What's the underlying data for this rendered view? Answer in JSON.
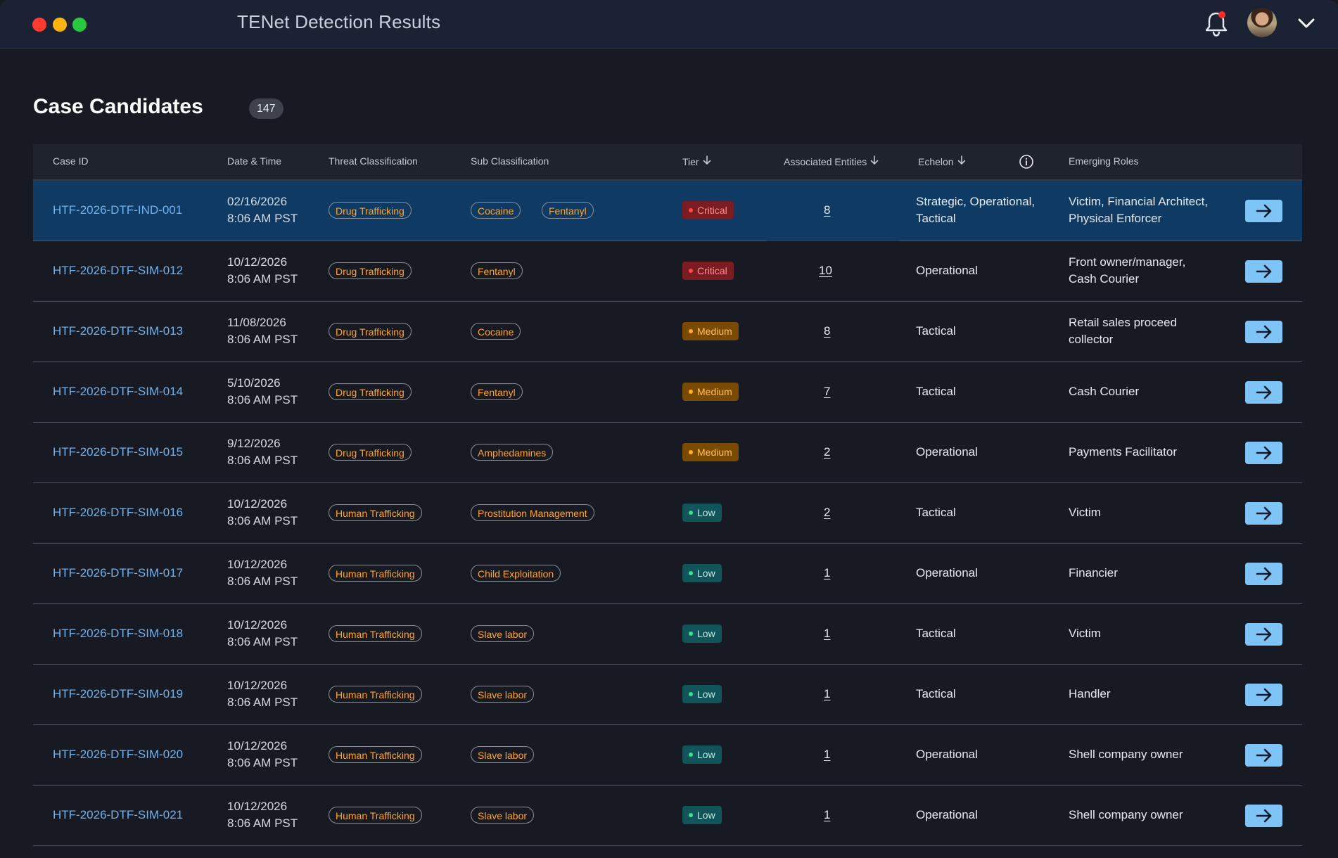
{
  "window": {
    "title": "TENet Detection Results"
  },
  "page": {
    "title": "Case Candidates",
    "count": "147"
  },
  "table": {
    "headers": {
      "case_id": "Case ID",
      "date_time": "Date & Time",
      "threat": "Threat Classification",
      "sub": "Sub Classification",
      "tier": "Tier",
      "entities": "Associated Entities",
      "echelon": "Echelon",
      "roles": "Emerging Roles"
    },
    "rows": [
      {
        "case_id": "HTF-2026-DTF-IND-001",
        "date": "02/16/2026",
        "time": "8:06 AM PST",
        "threat": "Drug Trafficking",
        "subs": [
          "Cocaine",
          "Fentanyl"
        ],
        "tier": "Critical",
        "tier_level": "critical",
        "entities": "8",
        "echelon": [
          "Strategic, Operational,",
          "Tactical"
        ],
        "roles": [
          "Victim, Financial Architect,",
          "Physical Enforcer"
        ],
        "selected": true
      },
      {
        "case_id": "HTF-2026-DTF-SIM-012",
        "date": "10/12/2026",
        "time": "8:06 AM PST",
        "threat": "Drug Trafficking",
        "subs": [
          "Fentanyl"
        ],
        "tier": "Critical",
        "tier_level": "critical",
        "entities": "10",
        "echelon": [
          "Operational"
        ],
        "roles": [
          "Front owner/manager,",
          "Cash Courier"
        ]
      },
      {
        "case_id": "HTF-2026-DTF-SIM-013",
        "date": "11/08/2026",
        "time": "8:06 AM PST",
        "threat": "Drug Trafficking",
        "subs": [
          "Cocaine"
        ],
        "tier": "Medium",
        "tier_level": "medium",
        "entities": "8",
        "echelon": [
          "Tactical"
        ],
        "roles": [
          "Retail sales proceed",
          "collector"
        ]
      },
      {
        "case_id": "HTF-2026-DTF-SIM-014",
        "date": "5/10/2026",
        "time": "8:06 AM PST",
        "threat": "Drug Trafficking",
        "subs": [
          "Fentanyl"
        ],
        "tier": "Medium",
        "tier_level": "medium",
        "entities": "7",
        "echelon": [
          "Tactical"
        ],
        "roles": [
          "Cash Courier"
        ]
      },
      {
        "case_id": "HTF-2026-DTF-SIM-015",
        "date": "9/12/2026",
        "time": "8:06 AM PST",
        "threat": "Drug Trafficking",
        "subs": [
          "Amphedamines"
        ],
        "tier": "Medium",
        "tier_level": "medium",
        "entities": "2",
        "echelon": [
          "Operational"
        ],
        "roles": [
          "Payments Facilitator"
        ]
      },
      {
        "case_id": "HTF-2026-DTF-SIM-016",
        "date": "10/12/2026",
        "time": "8:06 AM PST",
        "threat": "Human Trafficking",
        "subs": [
          "Prostitution Management"
        ],
        "tier": "Low",
        "tier_level": "low",
        "entities": "2",
        "echelon": [
          "Tactical"
        ],
        "roles": [
          "Victim"
        ]
      },
      {
        "case_id": "HTF-2026-DTF-SIM-017",
        "date": "10/12/2026",
        "time": "8:06 AM PST",
        "threat": "Human Trafficking",
        "subs": [
          "Child Exploitation"
        ],
        "tier": "Low",
        "tier_level": "low",
        "entities": "1",
        "echelon": [
          "Operational"
        ],
        "roles": [
          "Financier"
        ]
      },
      {
        "case_id": "HTF-2026-DTF-SIM-018",
        "date": "10/12/2026",
        "time": "8:06 AM PST",
        "threat": "Human Trafficking",
        "subs": [
          "Slave labor"
        ],
        "tier": "Low",
        "tier_level": "low",
        "entities": "1",
        "echelon": [
          "Tactical"
        ],
        "roles": [
          "Victim"
        ]
      },
      {
        "case_id": "HTF-2026-DTF-SIM-019",
        "date": "10/12/2026",
        "time": "8:06 AM PST",
        "threat": "Human Trafficking",
        "subs": [
          "Slave labor"
        ],
        "tier": "Low",
        "tier_level": "low",
        "entities": "1",
        "echelon": [
          "Tactical"
        ],
        "roles": [
          "Handler"
        ]
      },
      {
        "case_id": "HTF-2026-DTF-SIM-020",
        "date": "10/12/2026",
        "time": "8:06 AM PST",
        "threat": "Human Trafficking",
        "subs": [
          "Slave labor"
        ],
        "tier": "Low",
        "tier_level": "low",
        "entities": "1",
        "echelon": [
          "Operational"
        ],
        "roles": [
          "Shell company owner"
        ]
      },
      {
        "case_id": "HTF-2026-DTF-SIM-021",
        "date": "10/12/2026",
        "time": "8:06 AM PST",
        "threat": "Human Trafficking",
        "subs": [
          "Slave labor"
        ],
        "tier": "Low",
        "tier_level": "low",
        "entities": "1",
        "echelon": [
          "Operational"
        ],
        "roles": [
          "Shell company owner"
        ]
      }
    ]
  },
  "icons": {
    "bell": "bell-icon",
    "avatar": "user-avatar",
    "chevron": "chevron-down-icon",
    "info": "info-icon",
    "row_action": "arrow-right-icon",
    "sort": "arrow-down-icon"
  },
  "colors": {
    "accent": "#6fb2f0",
    "action_button": "#7fc4f6",
    "selected_row": "#0e3a63",
    "pill_text": "#ffa52a",
    "tier_critical": "#7a1c22",
    "tier_medium": "#7a4a00",
    "tier_low": "#11545a",
    "notification_dot": "#ff2d2d"
  }
}
